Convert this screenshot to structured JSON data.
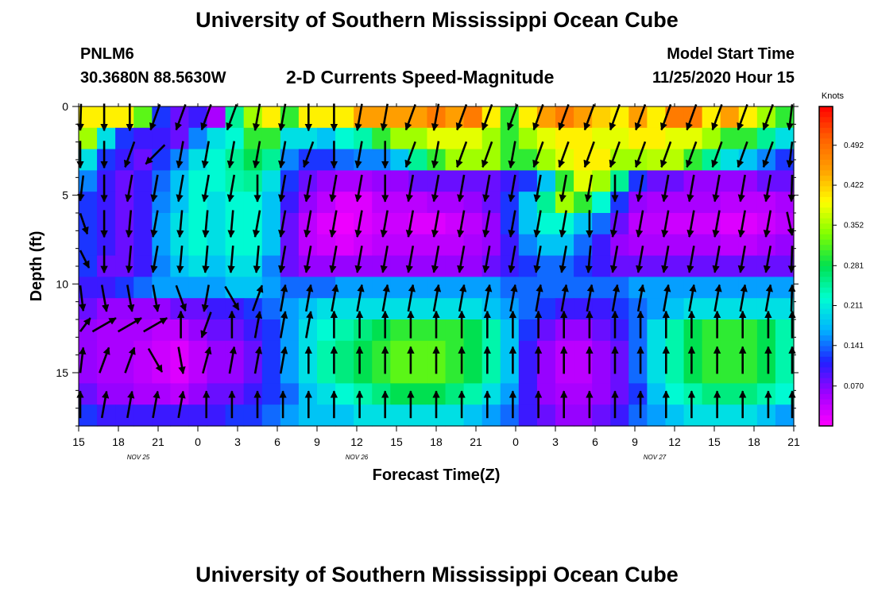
{
  "header": {
    "title": "University of Southern Mississippi Ocean Cube",
    "station": "PNLM6",
    "coords": "30.3680N 88.5630W",
    "subtitle": "2-D Currents Speed-Magnitude",
    "start_label": "Model Start Time",
    "start_time": "11/25/2020 Hour 15"
  },
  "footer": {
    "title": "University of Southern Mississippi Ocean Cube"
  },
  "chart_data": {
    "type": "heatmap",
    "xlabel": "Forecast Time(Z)",
    "ylabel": "Depth (ft)",
    "x_ticks": [
      "15",
      "18",
      "21",
      "0",
      "3",
      "6",
      "9",
      "12",
      "15",
      "18",
      "21",
      "0",
      "3",
      "6",
      "9",
      "12",
      "15",
      "18",
      "21"
    ],
    "date_labels": [
      {
        "label": "NOV  25",
        "at_tick": 1.5
      },
      {
        "label": "NOV  26",
        "at_tick": 7
      },
      {
        "label": "NOV  27",
        "at_tick": 14.5
      }
    ],
    "y_ticks": [
      0,
      5,
      10,
      15
    ],
    "ylim": [
      0,
      18
    ],
    "y_inverted": true,
    "colorbar": {
      "title": "Knots",
      "ticks": [
        "0.070",
        "0.141",
        "0.211",
        "0.281",
        "0.352",
        "0.422",
        "0.492"
      ],
      "range": [
        0,
        0.56
      ],
      "colors": [
        "#ff00ff",
        "#a000ff",
        "#2020ff",
        "#00b4ff",
        "#00ffd0",
        "#00e050",
        "#80ff00",
        "#ffff00",
        "#ffa000",
        "#ff6000",
        "#ff0000"
      ]
    },
    "depth_bands": [
      {
        "depth": 0.5,
        "speeds": [
          0.4,
          0.4,
          0.4,
          0.32,
          0.12,
          0.08,
          0.1,
          0.05,
          0.25,
          0.35,
          0.4,
          0.3,
          0.4,
          0.4,
          0.4,
          0.45,
          0.45,
          0.45,
          0.45,
          0.48,
          0.45,
          0.48,
          0.4,
          0.3,
          0.4,
          0.45,
          0.48,
          0.45,
          0.42,
          0.4,
          0.45,
          0.4,
          0.48,
          0.48,
          0.4,
          0.45,
          0.4,
          0.35,
          0.3
        ]
      },
      {
        "depth": 1.6,
        "speeds": [
          0.35,
          0.2,
          0.12,
          0.1,
          0.1,
          0.08,
          0.15,
          0.2,
          0.22,
          0.3,
          0.3,
          0.2,
          0.2,
          0.18,
          0.22,
          0.24,
          0.3,
          0.35,
          0.35,
          0.38,
          0.38,
          0.38,
          0.35,
          0.3,
          0.35,
          0.38,
          0.4,
          0.4,
          0.38,
          0.38,
          0.4,
          0.4,
          0.38,
          0.38,
          0.35,
          0.3,
          0.3,
          0.25,
          0.2
        ]
      },
      {
        "depth": 2.8,
        "speeds": [
          0.2,
          0.12,
          0.1,
          0.08,
          0.12,
          0.15,
          0.2,
          0.22,
          0.25,
          0.28,
          0.25,
          0.15,
          0.12,
          0.12,
          0.14,
          0.15,
          0.15,
          0.18,
          0.25,
          0.3,
          0.35,
          0.35,
          0.35,
          0.3,
          0.3,
          0.35,
          0.38,
          0.4,
          0.4,
          0.35,
          0.35,
          0.36,
          0.36,
          0.3,
          0.25,
          0.2,
          0.18,
          0.15,
          0.12
        ]
      },
      {
        "depth": 4.0,
        "speeds": [
          0.15,
          0.1,
          0.08,
          0.1,
          0.14,
          0.18,
          0.22,
          0.22,
          0.24,
          0.25,
          0.2,
          0.12,
          0.08,
          0.06,
          0.05,
          0.05,
          0.06,
          0.06,
          0.08,
          0.08,
          0.08,
          0.08,
          0.08,
          0.1,
          0.12,
          0.18,
          0.3,
          0.38,
          0.35,
          0.25,
          0.12,
          0.08,
          0.08,
          0.06,
          0.06,
          0.06,
          0.06,
          0.08,
          0.08
        ]
      },
      {
        "depth": 5.2,
        "speeds": [
          0.12,
          0.1,
          0.08,
          0.1,
          0.15,
          0.18,
          0.22,
          0.2,
          0.22,
          0.22,
          0.18,
          0.1,
          0.06,
          0.04,
          0.02,
          0.02,
          0.04,
          0.04,
          0.04,
          0.05,
          0.05,
          0.06,
          0.08,
          0.12,
          0.18,
          0.25,
          0.35,
          0.3,
          0.22,
          0.12,
          0.06,
          0.05,
          0.05,
          0.05,
          0.05,
          0.04,
          0.04,
          0.04,
          0.05
        ]
      },
      {
        "depth": 6.5,
        "speeds": [
          0.12,
          0.1,
          0.08,
          0.1,
          0.16,
          0.2,
          0.22,
          0.2,
          0.22,
          0.22,
          0.18,
          0.08,
          0.04,
          0.02,
          0.01,
          0.02,
          0.03,
          0.03,
          0.02,
          0.02,
          0.03,
          0.04,
          0.06,
          0.12,
          0.18,
          0.22,
          0.22,
          0.18,
          0.14,
          0.08,
          0.04,
          0.04,
          0.03,
          0.03,
          0.03,
          0.02,
          0.02,
          0.03,
          0.04
        ]
      },
      {
        "depth": 7.7,
        "speeds": [
          0.12,
          0.1,
          0.08,
          0.1,
          0.16,
          0.2,
          0.22,
          0.2,
          0.22,
          0.22,
          0.18,
          0.08,
          0.04,
          0.03,
          0.02,
          0.03,
          0.04,
          0.04,
          0.04,
          0.04,
          0.04,
          0.05,
          0.06,
          0.1,
          0.15,
          0.18,
          0.18,
          0.14,
          0.1,
          0.06,
          0.05,
          0.05,
          0.05,
          0.05,
          0.05,
          0.04,
          0.04,
          0.05,
          0.06
        ]
      },
      {
        "depth": 8.9,
        "speeds": [
          0.12,
          0.08,
          0.08,
          0.1,
          0.15,
          0.18,
          0.2,
          0.18,
          0.2,
          0.2,
          0.15,
          0.08,
          0.06,
          0.06,
          0.06,
          0.06,
          0.06,
          0.06,
          0.06,
          0.06,
          0.06,
          0.06,
          0.08,
          0.1,
          0.12,
          0.14,
          0.14,
          0.12,
          0.1,
          0.08,
          0.08,
          0.08,
          0.08,
          0.08,
          0.08,
          0.08,
          0.08,
          0.08,
          0.08
        ]
      },
      {
        "depth": 10.1,
        "speeds": [
          0.1,
          0.1,
          0.12,
          0.14,
          0.16,
          0.16,
          0.16,
          0.16,
          0.18,
          0.18,
          0.16,
          0.14,
          0.14,
          0.14,
          0.16,
          0.16,
          0.16,
          0.16,
          0.16,
          0.16,
          0.16,
          0.16,
          0.16,
          0.14,
          0.14,
          0.14,
          0.14,
          0.14,
          0.14,
          0.14,
          0.16,
          0.16,
          0.16,
          0.16,
          0.16,
          0.16,
          0.16,
          0.16,
          0.16
        ]
      },
      {
        "depth": 11.3,
        "speeds": [
          0.08,
          0.06,
          0.06,
          0.06,
          0.06,
          0.08,
          0.08,
          0.1,
          0.1,
          0.12,
          0.14,
          0.16,
          0.18,
          0.2,
          0.2,
          0.2,
          0.2,
          0.2,
          0.2,
          0.2,
          0.2,
          0.2,
          0.18,
          0.16,
          0.14,
          0.12,
          0.1,
          0.1,
          0.1,
          0.12,
          0.14,
          0.16,
          0.18,
          0.2,
          0.2,
          0.2,
          0.2,
          0.2,
          0.2
        ]
      },
      {
        "depth": 12.6,
        "speeds": [
          0.06,
          0.05,
          0.05,
          0.05,
          0.04,
          0.04,
          0.06,
          0.08,
          0.08,
          0.1,
          0.12,
          0.16,
          0.2,
          0.22,
          0.24,
          0.26,
          0.28,
          0.3,
          0.3,
          0.3,
          0.3,
          0.28,
          0.24,
          0.18,
          0.12,
          0.08,
          0.06,
          0.06,
          0.08,
          0.1,
          0.14,
          0.2,
          0.24,
          0.28,
          0.3,
          0.3,
          0.3,
          0.28,
          0.24
        ]
      },
      {
        "depth": 13.8,
        "speeds": [
          0.06,
          0.05,
          0.05,
          0.04,
          0.03,
          0.02,
          0.04,
          0.06,
          0.06,
          0.08,
          0.12,
          0.16,
          0.2,
          0.24,
          0.26,
          0.28,
          0.3,
          0.32,
          0.32,
          0.32,
          0.3,
          0.28,
          0.24,
          0.18,
          0.1,
          0.06,
          0.04,
          0.04,
          0.06,
          0.08,
          0.14,
          0.2,
          0.24,
          0.28,
          0.3,
          0.3,
          0.3,
          0.28,
          0.24
        ]
      },
      {
        "depth": 15.0,
        "speeds": [
          0.06,
          0.05,
          0.05,
          0.04,
          0.03,
          0.02,
          0.04,
          0.06,
          0.06,
          0.08,
          0.12,
          0.16,
          0.2,
          0.24,
          0.26,
          0.28,
          0.3,
          0.32,
          0.32,
          0.32,
          0.3,
          0.28,
          0.24,
          0.18,
          0.1,
          0.06,
          0.04,
          0.04,
          0.06,
          0.08,
          0.14,
          0.2,
          0.24,
          0.28,
          0.3,
          0.3,
          0.3,
          0.28,
          0.24
        ]
      },
      {
        "depth": 16.2,
        "speeds": [
          0.08,
          0.06,
          0.06,
          0.05,
          0.05,
          0.04,
          0.06,
          0.08,
          0.08,
          0.1,
          0.12,
          0.14,
          0.18,
          0.2,
          0.22,
          0.24,
          0.26,
          0.28,
          0.28,
          0.28,
          0.26,
          0.24,
          0.2,
          0.16,
          0.1,
          0.06,
          0.05,
          0.05,
          0.06,
          0.08,
          0.12,
          0.18,
          0.22,
          0.24,
          0.26,
          0.26,
          0.26,
          0.24,
          0.22
        ]
      },
      {
        "depth": 17.4,
        "speeds": [
          0.12,
          0.1,
          0.1,
          0.1,
          0.1,
          0.1,
          0.1,
          0.1,
          0.12,
          0.12,
          0.14,
          0.16,
          0.18,
          0.18,
          0.18,
          0.2,
          0.2,
          0.2,
          0.2,
          0.2,
          0.2,
          0.18,
          0.16,
          0.14,
          0.1,
          0.08,
          0.06,
          0.06,
          0.08,
          0.1,
          0.14,
          0.16,
          0.18,
          0.2,
          0.2,
          0.2,
          0.2,
          0.18,
          0.16
        ]
      }
    ],
    "vector_rows": [
      {
        "depth": 0.6,
        "dirs": [
          190,
          180,
          180,
          200,
          200,
          200,
          200,
          190,
          190,
          180,
          180,
          190,
          190,
          200,
          190,
          200,
          200,
          200,
          200,
          200,
          200,
          200,
          200,
          200,
          200,
          200,
          200,
          200,
          200
        ]
      },
      {
        "depth": 2.7,
        "dirs": [
          180,
          180,
          200,
          225,
          190,
          190,
          190,
          190,
          190,
          200,
          180,
          190,
          180,
          200,
          190,
          200,
          200,
          190,
          200,
          200,
          200,
          200,
          200,
          200,
          200,
          200,
          200,
          200,
          200
        ]
      },
      {
        "depth": 4.6,
        "dirs": [
          200,
          180,
          190,
          190,
          190,
          190,
          190,
          180,
          190,
          190,
          190,
          190,
          180,
          190,
          190,
          190,
          190,
          190,
          190,
          190,
          190,
          180,
          190,
          190,
          190,
          190,
          190,
          190,
          190
        ]
      },
      {
        "depth": 6.6,
        "dirs": [
          140,
          180,
          185,
          190,
          185,
          185,
          185,
          190,
          190,
          190,
          190,
          190,
          190,
          190,
          190,
          190,
          190,
          190,
          190,
          190,
          180,
          190,
          190,
          190,
          190,
          190,
          190,
          190,
          150
        ]
      },
      {
        "depth": 8.6,
        "dirs": [
          130,
          180,
          185,
          190,
          185,
          185,
          185,
          185,
          190,
          190,
          190,
          190,
          190,
          190,
          190,
          190,
          190,
          190,
          190,
          190,
          185,
          190,
          190,
          190,
          190,
          190,
          190,
          190,
          190
        ]
      },
      {
        "depth": 10.8,
        "dirs": [
          160,
          170,
          170,
          170,
          160,
          190,
          150,
          20,
          10,
          10,
          10,
          10,
          10,
          10,
          10,
          10,
          10,
          10,
          10,
          10,
          10,
          10,
          10,
          10,
          10,
          10,
          10,
          10,
          10
        ]
      },
      {
        "depth": 12.3,
        "dirs": [
          60,
          60,
          60,
          60,
          0,
          200,
          0,
          10,
          10,
          10,
          0,
          0,
          0,
          0,
          0,
          0,
          0,
          0,
          0,
          0,
          0,
          0,
          0,
          0,
          0,
          0,
          0,
          0,
          0
        ]
      },
      {
        "depth": 14.3,
        "dirs": [
          20,
          20,
          20,
          150,
          170,
          15,
          10,
          10,
          10,
          0,
          0,
          0,
          0,
          0,
          0,
          0,
          0,
          0,
          0,
          0,
          0,
          0,
          0,
          0,
          0,
          0,
          0,
          0,
          0
        ]
      },
      {
        "depth": 16.8,
        "dirs": [
          0,
          10,
          10,
          10,
          10,
          0,
          0,
          0,
          0,
          0,
          0,
          0,
          0,
          0,
          0,
          0,
          0,
          0,
          0,
          0,
          0,
          0,
          0,
          0,
          0,
          0,
          0,
          0,
          0
        ]
      }
    ]
  }
}
